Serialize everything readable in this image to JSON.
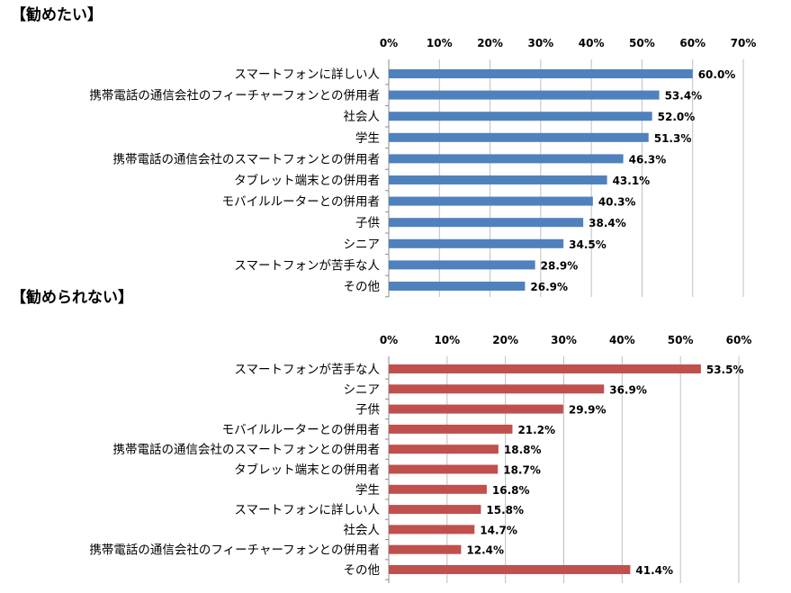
{
  "chart_data": [
    {
      "type": "bar",
      "orientation": "horizontal",
      "title": "【勧めたい】",
      "xlim": [
        0,
        70
      ],
      "ticks": [
        "0%",
        "10%",
        "20%",
        "30%",
        "40%",
        "50%",
        "60%",
        "70%"
      ],
      "tick_values": [
        0,
        10,
        20,
        30,
        40,
        50,
        60,
        70
      ],
      "bar_color": "#4F81BD",
      "categories": [
        "スマートフォンに詳しい人",
        "携帯電話の通信会社のフィーチャーフォンとの併用者",
        "社会人",
        "学生",
        "携帯電話の通信会社のスマートフォンとの併用者",
        "タブレット端末との併用者",
        "モバイルルーターとの併用者",
        "子供",
        "シニア",
        "スマートフォンが苦手な人",
        "その他"
      ],
      "values": [
        60.0,
        53.4,
        52.0,
        51.3,
        46.3,
        43.1,
        40.3,
        38.4,
        34.5,
        28.9,
        26.9
      ],
      "value_labels": [
        "60.0%",
        "53.4%",
        "52.0%",
        "51.3%",
        "46.3%",
        "43.1%",
        "40.3%",
        "38.4%",
        "34.5%",
        "28.9%",
        "26.9%"
      ]
    },
    {
      "type": "bar",
      "orientation": "horizontal",
      "title": "【勧められない】",
      "xlim": [
        0,
        60
      ],
      "ticks": [
        "0%",
        "10%",
        "20%",
        "30%",
        "40%",
        "50%",
        "60%"
      ],
      "tick_values": [
        0,
        10,
        20,
        30,
        40,
        50,
        60
      ],
      "bar_color": "#C0504D",
      "categories": [
        "スマートフォンが苦手な人",
        "シニア",
        "子供",
        "モバイルルーターとの併用者",
        "携帯電話の通信会社のスマートフォンとの併用者",
        "タブレット端末との併用者",
        "学生",
        "スマートフォンに詳しい人",
        "社会人",
        "携帯電話の通信会社のフィーチャーフォンとの併用者",
        "その他"
      ],
      "values": [
        53.5,
        36.9,
        29.9,
        21.2,
        18.8,
        18.7,
        16.8,
        15.8,
        14.7,
        12.4,
        41.4
      ],
      "value_labels": [
        "53.5%",
        "36.9%",
        "29.9%",
        "21.2%",
        "18.8%",
        "18.7%",
        "16.8%",
        "15.8%",
        "14.7%",
        "12.4%",
        "41.4%"
      ]
    }
  ]
}
